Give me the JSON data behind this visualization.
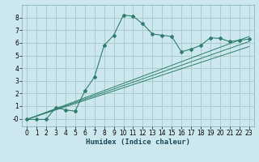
{
  "xlabel": "Humidex (Indice chaleur)",
  "ylabel": "",
  "background_color": "#cce8ee",
  "grid_color": "#aacccc",
  "line_color": "#2e7d6e",
  "xlim": [
    -0.5,
    23.5
  ],
  "ylim": [
    -0.6,
    9.0
  ],
  "yticks": [
    0,
    1,
    2,
    3,
    4,
    5,
    6,
    7,
    8
  ],
  "xticks": [
    0,
    1,
    2,
    3,
    4,
    5,
    6,
    7,
    8,
    9,
    10,
    11,
    12,
    13,
    14,
    15,
    16,
    17,
    18,
    19,
    20,
    21,
    22,
    23
  ],
  "curve1_x": [
    0,
    1,
    2,
    3,
    4,
    5,
    6,
    7,
    8,
    9,
    10,
    11,
    12,
    13,
    14,
    15,
    16,
    17,
    18,
    19,
    20,
    21,
    22,
    23
  ],
  "curve1_y": [
    -0.05,
    -0.05,
    -0.05,
    0.9,
    0.7,
    0.6,
    2.2,
    3.3,
    5.8,
    6.6,
    8.2,
    8.1,
    7.5,
    6.7,
    6.6,
    6.5,
    5.3,
    5.5,
    5.8,
    6.4,
    6.35,
    6.1,
    6.2,
    6.3
  ],
  "line1_x": [
    0,
    23
  ],
  "line1_y": [
    -0.05,
    6.5
  ],
  "line2_x": [
    0,
    23
  ],
  "line2_y": [
    -0.05,
    6.1
  ],
  "line3_x": [
    0,
    23
  ],
  "line3_y": [
    -0.05,
    5.7
  ]
}
